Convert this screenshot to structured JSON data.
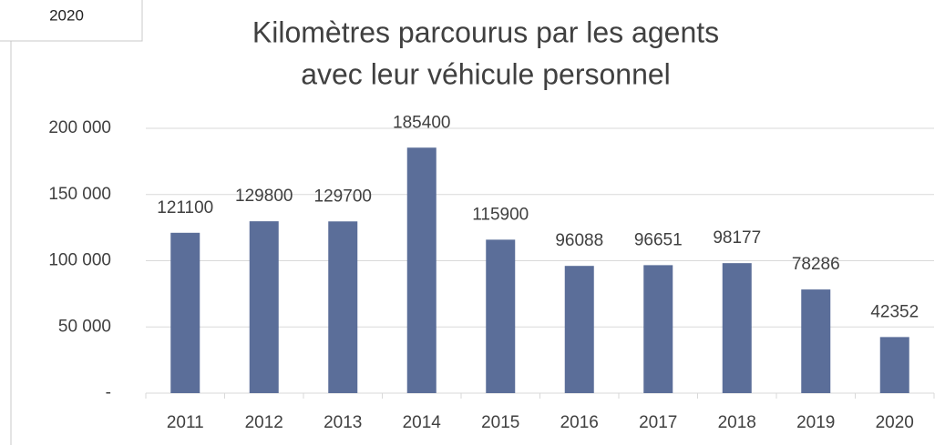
{
  "cell": "2020",
  "chart_data": {
    "type": "bar",
    "title": [
      "Kilomètres parcourus par les agents",
      "avec leur véhicule personnel"
    ],
    "categories": [
      "2011",
      "2012",
      "2013",
      "2014",
      "2015",
      "2016",
      "2017",
      "2018",
      "2019",
      "2020"
    ],
    "values": [
      121100,
      129800,
      129700,
      185400,
      115900,
      96088,
      96651,
      98177,
      78286,
      42352
    ],
    "color": "#5b6e99",
    "ylim": [
      0,
      200000
    ],
    "yticks": [
      {
        "value": 0,
        "label": "-"
      },
      {
        "value": 50000,
        "label": "50 000"
      },
      {
        "value": 100000,
        "label": "100 000"
      },
      {
        "value": 150000,
        "label": "150 000"
      },
      {
        "value": 200000,
        "label": "200 000"
      }
    ],
    "grid": true
  }
}
